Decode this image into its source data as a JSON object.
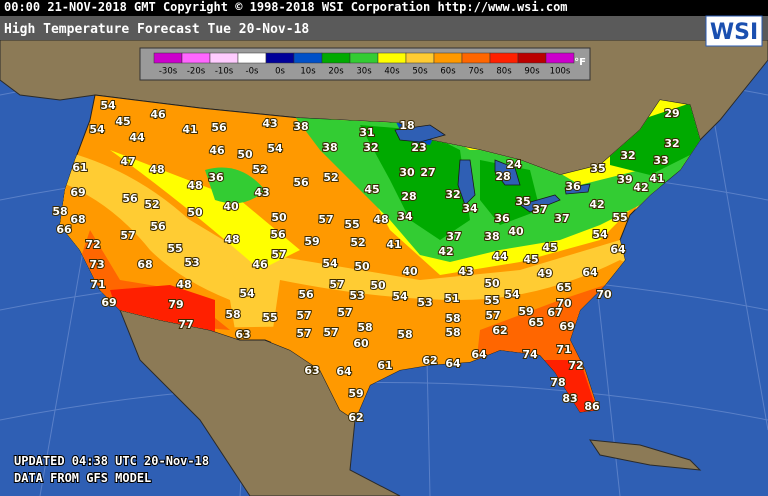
{
  "header": {
    "banner": "00:00 21-NOV-2018 GMT Copyright © 1998-2018 WSI Corporation  http://www.wsi.com",
    "title": "High Temperature Forecast  Tue 20-Nov-18",
    "logo": "WSI"
  },
  "legend": {
    "unit": "°F",
    "items": [
      {
        "label": "-30s",
        "color": "#cc00cc"
      },
      {
        "label": "-20s",
        "color": "#ff66ff"
      },
      {
        "label": "-10s",
        "color": "#ffccff"
      },
      {
        "label": "-0s",
        "color": "#ffffff"
      },
      {
        "label": "0s",
        "color": "#000099"
      },
      {
        "label": "10s",
        "color": "#0050c8"
      },
      {
        "label": "20s",
        "color": "#00aa00"
      },
      {
        "label": "30s",
        "color": "#33cc33"
      },
      {
        "label": "40s",
        "color": "#ffff00"
      },
      {
        "label": "50s",
        "color": "#ffcc33"
      },
      {
        "label": "60s",
        "color": "#ff9900"
      },
      {
        "label": "70s",
        "color": "#ff6600"
      },
      {
        "label": "80s",
        "color": "#ff2000"
      },
      {
        "label": "90s",
        "color": "#bb0000"
      },
      {
        "label": "100s",
        "color": "#cc00cc"
      }
    ]
  },
  "temperatures": [
    54,
    45,
    46,
    54,
    44,
    41,
    56,
    43,
    38,
    31,
    18,
    32,
    46,
    50,
    54,
    38,
    23,
    47,
    48,
    52,
    61,
    30,
    27,
    24,
    29,
    32,
    32,
    33,
    35,
    28,
    39,
    41,
    36,
    42,
    36,
    52,
    56,
    43,
    48,
    45,
    32,
    28,
    35,
    37,
    42,
    69,
    56,
    52,
    40,
    50,
    50,
    57,
    55,
    48,
    34,
    34,
    36,
    37,
    55,
    68,
    58,
    66,
    57,
    56,
    48,
    56,
    59,
    52,
    41,
    37,
    38,
    40,
    42,
    45,
    54,
    64,
    72,
    55,
    53,
    57,
    46,
    54,
    50,
    40,
    43,
    44,
    45,
    49,
    64,
    73,
    68,
    71,
    48,
    54,
    56,
    57,
    50,
    54,
    53,
    51,
    50,
    54,
    55,
    65,
    70,
    69,
    79,
    53,
    58,
    55,
    57,
    57,
    57,
    59,
    67,
    70,
    77,
    63,
    57,
    57,
    58,
    58,
    58,
    62,
    65,
    69,
    58,
    60,
    71,
    74,
    64,
    72,
    61,
    62,
    64,
    63,
    64,
    78,
    83,
    86,
    59,
    62
  ],
  "footer": {
    "updated": "UPDATED 04:38 UTC 20-Nov-18",
    "source": "DATA FROM GFS MODEL"
  }
}
